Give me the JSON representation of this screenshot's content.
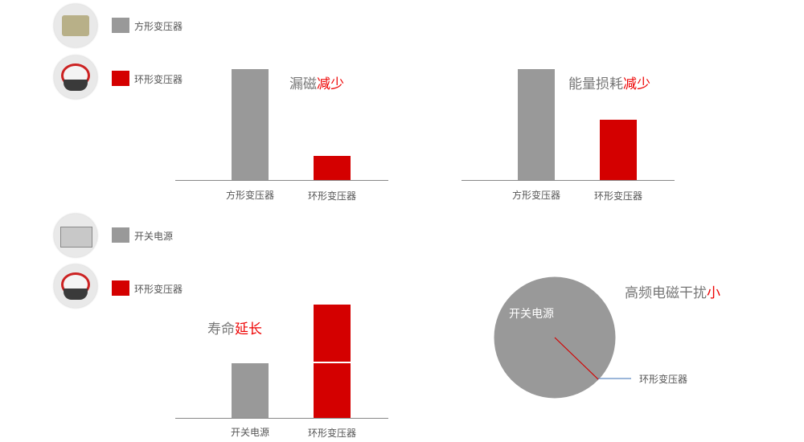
{
  "colors": {
    "gray": "#999999",
    "red": "#d40000",
    "highlight": "#ee0000",
    "leader": "#3a6fb5"
  },
  "legend_top": [
    {
      "label": "方形变压器",
      "color": "#999999",
      "icon": "square-transformer-photo"
    },
    {
      "label": "环形变压器",
      "color": "#d40000",
      "icon": "toroidal-transformer-photo"
    }
  ],
  "legend_bottom": [
    {
      "label": "开关电源",
      "color": "#999999",
      "icon": "switching-power-supply-photo"
    },
    {
      "label": "环形变压器",
      "color": "#d40000",
      "icon": "toroidal-transformer-photo"
    }
  ],
  "chart_data": [
    {
      "type": "bar",
      "title_main": "漏磁",
      "title_highlight": "减少",
      "categories": [
        "方形变压器",
        "环形变压器"
      ],
      "values": [
        1,
        0.22
      ],
      "colors": [
        "#999999",
        "#d40000"
      ]
    },
    {
      "type": "bar",
      "title_main": "能量损耗",
      "title_highlight": "减少",
      "categories": [
        "方形变压器",
        "环形变压器"
      ],
      "values": [
        1,
        0.54
      ],
      "colors": [
        "#999999",
        "#d40000"
      ]
    },
    {
      "type": "bar",
      "stacked": true,
      "title_main": "寿命",
      "title_highlight": "延长",
      "categories": [
        "开关电源",
        "环形变压器"
      ],
      "series": [
        {
          "values": [
            1,
            1
          ]
        },
        {
          "values": [
            0,
            1.04
          ]
        }
      ],
      "colors": [
        "#999999",
        "#d40000"
      ]
    },
    {
      "type": "pie",
      "title_main": "高频电磁干扰",
      "title_highlight": "小",
      "labels": [
        "开关电源",
        "环形变压器"
      ],
      "values": [
        99.9,
        0.1
      ],
      "colors": [
        "#999999",
        "#d40000"
      ]
    }
  ]
}
